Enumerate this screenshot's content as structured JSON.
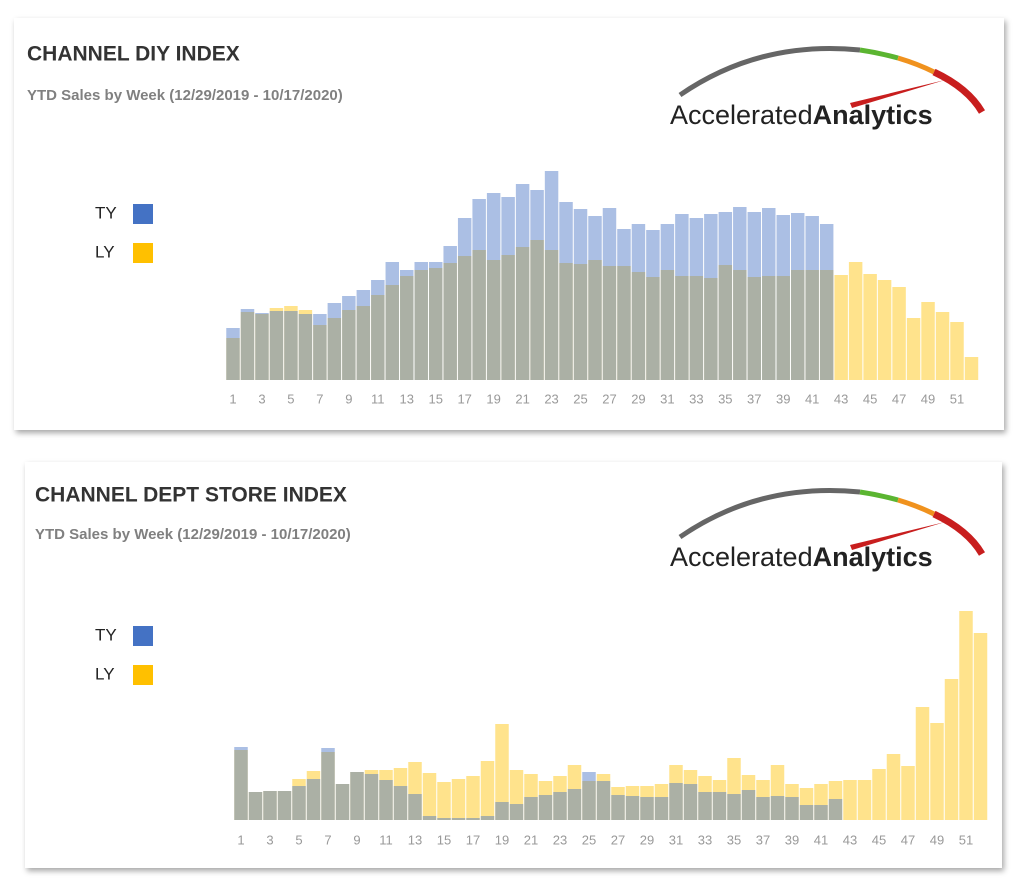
{
  "logo": {
    "part1": "Accelerated",
    "part2": "Analytics"
  },
  "chart_data": [
    {
      "type": "bar",
      "title": "CHANNEL DIY INDEX",
      "subtitle": "YTD Sales by Week (12/29/2019 - 10/17/2020)",
      "categories": [
        1,
        null,
        3,
        null,
        5,
        null,
        7,
        null,
        9,
        null,
        11,
        null,
        13,
        null,
        15,
        null,
        17,
        null,
        19,
        null,
        21,
        null,
        23,
        null,
        25,
        null,
        27,
        null,
        29,
        null,
        31,
        null,
        33,
        null,
        35,
        null,
        37,
        null,
        39,
        null,
        41,
        null,
        43,
        null,
        45,
        null,
        47,
        null,
        49,
        null,
        51,
        null
      ],
      "series": [
        {
          "name": "TY",
          "color": "#4472c4",
          "values": [
            52,
            71,
            67,
            69,
            69,
            66,
            66,
            77,
            84,
            90,
            100,
            118,
            110,
            118,
            118,
            134,
            162,
            181,
            187,
            183,
            196,
            190,
            209,
            178,
            171,
            164,
            172,
            151,
            156,
            150,
            156,
            166,
            162,
            166,
            168,
            173,
            168,
            172,
            165,
            167,
            164,
            156,
            null,
            null,
            null,
            null,
            null,
            null,
            null,
            null,
            null,
            null
          ]
        },
        {
          "name": "LY",
          "color": "#ffc000",
          "values": [
            42,
            68,
            66,
            72,
            74,
            70,
            55,
            62,
            70,
            74,
            85,
            95,
            104,
            110,
            112,
            117,
            124,
            130,
            120,
            125,
            133,
            140,
            130,
            117,
            116,
            120,
            114,
            114,
            108,
            103,
            110,
            104,
            104,
            102,
            115,
            110,
            103,
            104,
            104,
            110,
            110,
            110,
            105,
            118,
            106,
            100,
            93,
            62,
            78,
            68,
            58,
            23
          ]
        }
      ]
    },
    {
      "type": "bar",
      "title": "CHANNEL DEPT STORE INDEX",
      "subtitle": "YTD Sales by Week (12/29/2019 - 10/17/2020)",
      "categories": [
        1,
        null,
        3,
        null,
        5,
        null,
        7,
        null,
        9,
        null,
        11,
        null,
        13,
        null,
        15,
        null,
        17,
        null,
        19,
        null,
        21,
        null,
        23,
        null,
        25,
        null,
        27,
        null,
        29,
        null,
        31,
        null,
        33,
        null,
        35,
        null,
        37,
        null,
        39,
        null,
        41,
        null,
        43,
        null,
        45,
        null,
        47,
        null,
        49,
        null,
        51,
        null
      ],
      "series": [
        {
          "name": "TY",
          "color": "#4472c4",
          "values": [
            73,
            28,
            29,
            29,
            34,
            41,
            72,
            36,
            48,
            46,
            40,
            34,
            26,
            4,
            2,
            2,
            2,
            4,
            18,
            16,
            23,
            25,
            28,
            31,
            48,
            39,
            25,
            24,
            23,
            23,
            37,
            36,
            28,
            28,
            26,
            30,
            23,
            24,
            23,
            15,
            15,
            21,
            null,
            null,
            null,
            null,
            null,
            null,
            null,
            null,
            null,
            null
          ]
        },
        {
          "name": "LY",
          "color": "#ffc000",
          "values": [
            70,
            28,
            29,
            29,
            41,
            49,
            68,
            36,
            48,
            50,
            50,
            52,
            58,
            47,
            38,
            41,
            44,
            59,
            96,
            50,
            46,
            39,
            44,
            55,
            39,
            46,
            33,
            34,
            34,
            36,
            55,
            50,
            44,
            40,
            62,
            45,
            40,
            55,
            36,
            32,
            36,
            39,
            40,
            40,
            51,
            66,
            54,
            113,
            97,
            141,
            209,
            187
          ]
        }
      ]
    }
  ]
}
